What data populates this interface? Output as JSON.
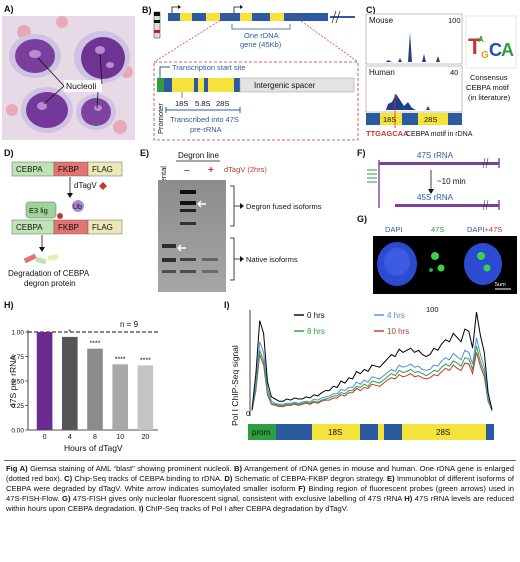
{
  "labels": {
    "A": "A)",
    "B": "B)",
    "C": "C)",
    "D": "D)",
    "E": "E)",
    "F": "F)",
    "G": "G)",
    "H": "H)",
    "I": "I)"
  },
  "panelA": {
    "nucleoli": "Nucleoli"
  },
  "panelB": {
    "tss": "Transcription start site",
    "one_rdna": "One rDNA",
    "gene_size": "gene (45Kb)",
    "intergenic": "Intergenic spacer",
    "promoter": "Promoter",
    "s18": "18S",
    "s58": "5.8S",
    "s28": "28S",
    "transcribed": "Transcribed into 47S",
    "prerna": "pre-rRNA"
  },
  "panelC": {
    "mouse": "Mouse",
    "mouse_max": "100",
    "human": "Human",
    "human_max": "40",
    "s18": "18S",
    "s28": "28S",
    "motif_seq": "TTGAGCAA",
    "motif_label": "CEBPA motif in rDNA",
    "consensus1": "Consensus",
    "consensus2": "CEBPA motif",
    "consensus3": "(in literature)"
  },
  "panelD": {
    "cebpa": "CEBPA",
    "fkbp": "FKBP",
    "flag": "FLAG",
    "dtagv": "dTagV",
    "e3": "E3 lig",
    "ub": "Ub",
    "deg1": "Degradation of CEBPA",
    "deg2": "degron protein"
  },
  "panelE": {
    "degron_line": "Degron line",
    "parental": "Parental",
    "minus": "–",
    "plus": "+",
    "dtag": "dTagV (2hrs)",
    "fused": "Degron fused isoforms",
    "native": "Native isoforms"
  },
  "panelF": {
    "s47": "47S rRNA",
    "time": "~10 min",
    "s45": "45S rRNA"
  },
  "panelG": {
    "dapi": "DAPI",
    "s47": "47S",
    "dapi_merge": "DAPI",
    "plus47": "+47S",
    "scale": "5um"
  },
  "panelH": {
    "ylabel": "47S pre rRNA",
    "xlabel": "Hours of dTagV",
    "n": "n = 9",
    "yticks": [
      "0.00",
      "0.25",
      "0.50",
      "0.75",
      "1.00"
    ]
  },
  "panelI": {
    "ylabel": "Pol I ChIP-Seq signal",
    "ytick_top": "100",
    "ytick_bot": "0",
    "prom": "prom",
    "s18": "18S",
    "s28": "28S"
  },
  "chart_data": [
    {
      "type": "bar",
      "categories": [
        "0",
        "4",
        "8",
        "10",
        "20"
      ],
      "values": [
        1.0,
        0.95,
        0.83,
        0.67,
        0.66
      ],
      "significance": [
        "",
        "*",
        "****",
        "****",
        "****"
      ],
      "colors": [
        "#6a2c91",
        "#555555",
        "#8c8c8c",
        "#a8a8a8",
        "#c4c4c4"
      ],
      "xlabel": "Hours of dTagV",
      "ylabel": "47S pre rRNA",
      "ylim": [
        0,
        1.0
      ],
      "reference_line": 1.0
    },
    {
      "type": "line",
      "ylabel": "Pol I ChIP-Seq signal",
      "ylim": [
        0,
        100
      ],
      "series": [
        {
          "name": "0 hrs",
          "color": "#000000",
          "values": [
            6,
            40,
            90,
            78,
            32,
            18,
            16,
            14,
            14,
            16,
            15,
            17,
            16,
            16,
            18,
            17,
            20,
            19,
            22,
            24,
            24,
            28,
            27,
            33,
            31,
            36,
            35,
            42,
            40,
            44,
            42,
            48,
            47,
            46,
            50,
            54,
            58,
            56,
            63,
            60,
            62,
            64,
            60,
            62,
            58,
            56,
            58,
            64,
            62,
            68,
            72,
            70,
            78,
            74,
            70,
            82,
            80,
            64,
            98,
            76,
            60,
            22,
            6
          ]
        },
        {
          "name": "4 hrs",
          "color": "#4a90d9",
          "values": [
            5,
            30,
            70,
            60,
            26,
            14,
            12,
            11,
            11,
            12,
            12,
            13,
            12,
            13,
            14,
            13,
            16,
            15,
            17,
            18,
            19,
            21,
            21,
            25,
            24,
            27,
            27,
            32,
            30,
            34,
            32,
            37,
            36,
            35,
            38,
            41,
            44,
            42,
            48,
            46,
            47,
            49,
            46,
            47,
            44,
            43,
            44,
            48,
            47,
            52,
            55,
            53,
            59,
            56,
            53,
            62,
            60,
            49,
            74,
            58,
            46,
            17,
            5
          ]
        },
        {
          "name": "8 hrs",
          "color": "#2e9e3e",
          "values": [
            5,
            26,
            62,
            52,
            22,
            12,
            11,
            10,
            10,
            11,
            11,
            12,
            11,
            12,
            13,
            12,
            14,
            13,
            15,
            16,
            17,
            19,
            19,
            22,
            21,
            24,
            24,
            28,
            27,
            30,
            28,
            33,
            32,
            31,
            34,
            37,
            40,
            38,
            43,
            41,
            42,
            44,
            41,
            42,
            40,
            38,
            40,
            43,
            42,
            46,
            49,
            47,
            52,
            50,
            47,
            55,
            54,
            44,
            66,
            51,
            41,
            15,
            5
          ]
        },
        {
          "name": "10 hrs",
          "color": "#c0392b",
          "values": [
            5,
            24,
            58,
            48,
            20,
            11,
            10,
            9,
            9,
            10,
            10,
            11,
            10,
            11,
            12,
            11,
            13,
            12,
            14,
            15,
            15,
            17,
            17,
            20,
            19,
            22,
            22,
            26,
            24,
            27,
            26,
            30,
            29,
            28,
            31,
            34,
            36,
            35,
            39,
            37,
            38,
            40,
            37,
            38,
            36,
            35,
            36,
            39,
            38,
            42,
            45,
            43,
            48,
            45,
            43,
            50,
            49,
            40,
            60,
            47,
            37,
            14,
            5
          ]
        }
      ]
    }
  ],
  "caption": {
    "fig": "Fig A)",
    "a": " Giemsa staining of AML “blast” showing prominent nucleoli. ",
    "b_lbl": "B)",
    "b": " Arrangement of rDNA genes in mouse and human. One rDNA gene is enlarged (dotted red box). ",
    "c_lbl": "C)",
    "c": " Chip-Seq tracks of CEBPA binding to rDNA. ",
    "d_lbl": "D)",
    "d": " Schematic of CEBPA-FKBP degron strategy. ",
    "e_lbl": "E)",
    "e": " Immunoblot of different isoforms of CEBPA were degraded by dTagV. White arrow indicates sumoylated smaller isoform ",
    "f_lbl": "F)",
    "f": " Binding region of fluorescent probes (green arrows) used in 47S-FISH-Flow. ",
    "g_lbl": "G)",
    "g": " 47S-FISH gives only nucleolar fluorescent signal, consistent with exclusive labelling of 47S rRNA ",
    "h_lbl": "H)",
    "h": " 47S rRNA levels are reduced within hours upon CEBPA degradation. ",
    "i_lbl": "I)",
    "i": " ChIP-Seq tracks of Pol I after CEBPA degradation by dTagV."
  }
}
